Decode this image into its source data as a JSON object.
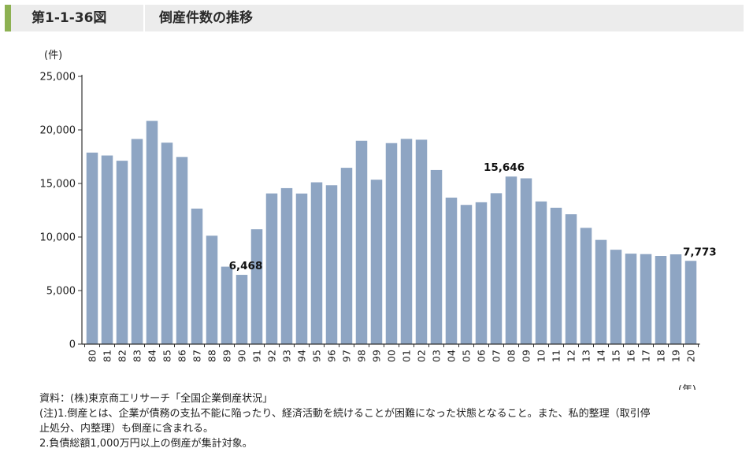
{
  "header": {
    "figure_number": "第1-1-36図",
    "title": "倒産件数の推移"
  },
  "notes": {
    "source": "資料：(株)東京商工リサーチ「全国企業倒産状況」",
    "note1_line1": "(注)1.倒産とは、企業が債務の支払不能に陥ったり、経済活動を続けることが困難になった状態となること。また、私的整理（取引停",
    "note1_line2": "止処分、内整理）も倒産に含まれる。",
    "note2": "2.負債総額1,000万円以上の倒産が集計対象。"
  },
  "chart_data": {
    "type": "bar",
    "title": "",
    "ylabel": "(件)",
    "xlabel": "(年)",
    "ylim": [
      0,
      25000
    ],
    "yticks": [
      0,
      5000,
      10000,
      15000,
      20000,
      25000
    ],
    "ytick_labels": [
      "0",
      "5,000",
      "10,000",
      "15,000",
      "20,000",
      "25,000"
    ],
    "bar_color": "#8ea5c3",
    "categories": [
      "80",
      "81",
      "82",
      "83",
      "84",
      "85",
      "86",
      "87",
      "88",
      "89",
      "90",
      "91",
      "92",
      "93",
      "94",
      "95",
      "96",
      "97",
      "98",
      "99",
      "00",
      "01",
      "02",
      "03",
      "04",
      "05",
      "06",
      "07",
      "08",
      "09",
      "10",
      "11",
      "12",
      "13",
      "14",
      "15",
      "16",
      "17",
      "18",
      "19",
      "20"
    ],
    "values": [
      17884,
      17610,
      17122,
      19155,
      20841,
      18812,
      17476,
      12655,
      10122,
      7234,
      6468,
      10723,
      14069,
      14564,
      14061,
      15108,
      14834,
      16464,
      18988,
      15352,
      18769,
      19164,
      19087,
      16255,
      13679,
      12998,
      13245,
      14091,
      15646,
      15480,
      13321,
      12734,
      12124,
      10855,
      9731,
      8812,
      8446,
      8405,
      8235,
      8383,
      7773
    ],
    "annotations": [
      {
        "index": 10,
        "label": "6,468"
      },
      {
        "index": 28,
        "label": "15,646"
      },
      {
        "index": 40,
        "label": "7,773"
      }
    ]
  }
}
